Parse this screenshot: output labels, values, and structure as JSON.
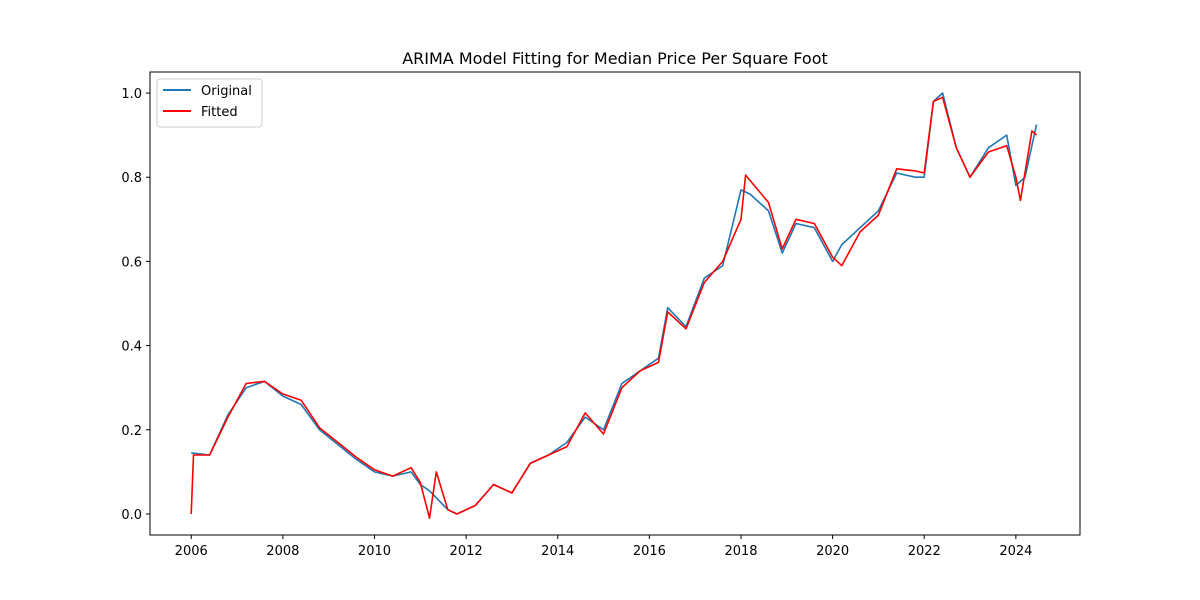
{
  "chart_data": {
    "type": "line",
    "title": "ARIMA Model Fitting for Median Price Per Square Foot",
    "xlabel": "",
    "ylabel": "",
    "xlim": [
      2005.1,
      2025.4
    ],
    "ylim": [
      -0.05,
      1.05
    ],
    "x_ticks": [
      "2006",
      "2008",
      "2010",
      "2012",
      "2014",
      "2016",
      "2018",
      "2020",
      "2022",
      "2024"
    ],
    "x_tick_values": [
      2006,
      2008,
      2010,
      2012,
      2014,
      2016,
      2018,
      2020,
      2022,
      2024
    ],
    "y_ticks": [
      "0.0",
      "0.2",
      "0.4",
      "0.6",
      "0.8",
      "1.0"
    ],
    "y_tick_values": [
      0.0,
      0.2,
      0.4,
      0.6,
      0.8,
      1.0
    ],
    "grid": false,
    "legend_position": "top-left",
    "series": [
      {
        "name": "Original",
        "color": "#1f77b4",
        "x": [
          2006.0,
          2006.4,
          2006.8,
          2007.2,
          2007.6,
          2008.0,
          2008.4,
          2008.8,
          2009.2,
          2009.6,
          2010.0,
          2010.4,
          2010.8,
          2011.0,
          2011.2,
          2011.6,
          2011.8,
          2012.2,
          2012.6,
          2013.0,
          2013.4,
          2013.8,
          2014.2,
          2014.6,
          2015.0,
          2015.4,
          2015.8,
          2016.2,
          2016.4,
          2016.8,
          2017.2,
          2017.6,
          2018.0,
          2018.2,
          2018.6,
          2018.9,
          2019.2,
          2019.6,
          2020.0,
          2020.2,
          2020.6,
          2021.0,
          2021.4,
          2021.8,
          2022.0,
          2022.2,
          2022.4,
          2022.7,
          2023.0,
          2023.4,
          2023.8,
          2024.0,
          2024.2,
          2024.45
        ],
        "y": [
          0.145,
          0.14,
          0.235,
          0.3,
          0.315,
          0.28,
          0.26,
          0.2,
          0.165,
          0.13,
          0.1,
          0.09,
          0.1,
          0.07,
          0.055,
          0.01,
          0.0,
          0.02,
          0.07,
          0.05,
          0.12,
          0.14,
          0.17,
          0.23,
          0.2,
          0.31,
          0.34,
          0.37,
          0.49,
          0.445,
          0.56,
          0.59,
          0.77,
          0.76,
          0.72,
          0.62,
          0.69,
          0.68,
          0.6,
          0.64,
          0.68,
          0.72,
          0.81,
          0.8,
          0.8,
          0.98,
          1.0,
          0.87,
          0.8,
          0.87,
          0.9,
          0.78,
          0.8,
          0.925
        ]
      },
      {
        "name": "Fitted",
        "color": "#ff0000",
        "x": [
          2006.0,
          2006.05,
          2006.4,
          2006.8,
          2007.2,
          2007.6,
          2008.0,
          2008.4,
          2008.8,
          2009.2,
          2009.6,
          2010.0,
          2010.4,
          2010.8,
          2011.0,
          2011.2,
          2011.35,
          2011.6,
          2011.8,
          2012.2,
          2012.6,
          2013.0,
          2013.4,
          2013.8,
          2014.2,
          2014.6,
          2015.0,
          2015.4,
          2015.8,
          2016.2,
          2016.4,
          2016.8,
          2017.2,
          2017.6,
          2018.0,
          2018.1,
          2018.6,
          2018.9,
          2019.2,
          2019.6,
          2020.0,
          2020.2,
          2020.6,
          2021.0,
          2021.4,
          2021.8,
          2022.0,
          2022.2,
          2022.4,
          2022.7,
          2023.0,
          2023.4,
          2023.8,
          2024.0,
          2024.1,
          2024.35,
          2024.45
        ],
        "y": [
          0.0,
          0.14,
          0.14,
          0.23,
          0.31,
          0.315,
          0.285,
          0.27,
          0.205,
          0.17,
          0.135,
          0.105,
          0.09,
          0.11,
          0.075,
          -0.01,
          0.1,
          0.01,
          0.0,
          0.02,
          0.07,
          0.05,
          0.12,
          0.14,
          0.16,
          0.24,
          0.19,
          0.3,
          0.34,
          0.36,
          0.48,
          0.44,
          0.55,
          0.6,
          0.7,
          0.805,
          0.74,
          0.63,
          0.7,
          0.69,
          0.61,
          0.59,
          0.67,
          0.71,
          0.82,
          0.815,
          0.81,
          0.98,
          0.99,
          0.87,
          0.8,
          0.86,
          0.875,
          0.8,
          0.745,
          0.91,
          0.9
        ]
      }
    ]
  }
}
